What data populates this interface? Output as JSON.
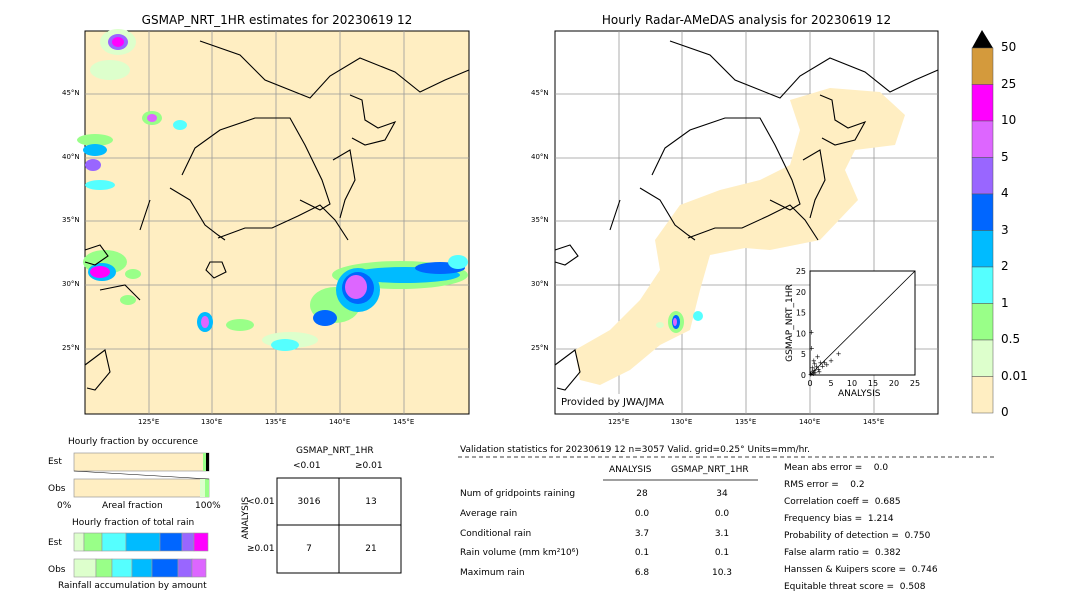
{
  "left_map": {
    "title": "GSMAP_NRT_1HR estimates for 20230619 12",
    "lat_labels": [
      "45°N",
      "40°N",
      "35°N",
      "30°N",
      "25°N"
    ],
    "lon_labels": [
      "125°E",
      "130°E",
      "135°E",
      "140°E",
      "145°E"
    ]
  },
  "right_map": {
    "title": "Hourly Radar-AMeDAS analysis for 20230619 12",
    "lat_labels": [
      "45°N",
      "40°N",
      "35°N",
      "30°N",
      "25°N"
    ],
    "lon_labels": [
      "125°E",
      "130°E",
      "135°E",
      "140°E",
      "145°E"
    ],
    "credit": "Provided by JWA/JMA"
  },
  "colorbar": {
    "labels": [
      "50",
      "25",
      "10",
      "5",
      "4",
      "3",
      "2",
      "1",
      "0.5",
      "0.01",
      "0"
    ],
    "colors": [
      "#d49a3c",
      "#ff00ff",
      "#dd66ff",
      "#9966ff",
      "#0066ff",
      "#00bbff",
      "#55ffff",
      "#99ff88",
      "#ddffcc",
      "#ffeec2"
    ],
    "arrow_color": "#000000"
  },
  "fraction_occurrence": {
    "title": "Hourly fraction by occurence",
    "rows": [
      "Est",
      "Obs"
    ],
    "xlabel": "Areal fraction",
    "x_left": "0%",
    "x_right": "100%"
  },
  "fraction_total": {
    "title": "Hourly fraction of total rain",
    "rows": [
      "Est",
      "Obs"
    ],
    "xlabel": "Rainfall accumulation by amount"
  },
  "contingency": {
    "title": "GSMAP_NRT_1HR",
    "col_headers": [
      "<0.01",
      "≥0.01"
    ],
    "row_axis": "ANALYSIS",
    "row_headers": [
      "<0.01",
      "≥0.01"
    ],
    "cells": [
      [
        "3016",
        "13"
      ],
      [
        "7",
        "21"
      ]
    ]
  },
  "validation": {
    "header": "Validation statistics for 20230619 12  n=3057 Valid. grid=0.25° Units=mm/hr.",
    "col_headers": [
      "ANALYSIS",
      "GSMAP_NRT_1HR"
    ],
    "rows": [
      {
        "label": "Num of gridpoints raining",
        "a": "28",
        "g": "34"
      },
      {
        "label": "Average rain",
        "a": "0.0",
        "g": "0.0"
      },
      {
        "label": "Conditional rain",
        "a": "3.7",
        "g": "3.1"
      },
      {
        "label": "Rain volume (mm km²10⁶)",
        "a": "0.1",
        "g": "0.1"
      },
      {
        "label": "Maximum rain",
        "a": "6.8",
        "g": "10.3"
      }
    ],
    "scores": [
      "Mean abs error =    0.0",
      "RMS error =    0.2",
      "Correlation coeff =  0.685",
      "Frequency bias =  1.214",
      "Probability of detection =  0.750",
      "False alarm ratio =  0.382",
      "Hanssen & Kuipers score =  0.746",
      "Equitable threat score =  0.508"
    ]
  },
  "chart_data": [
    {
      "type": "scatter",
      "xlabel": "ANALYSIS",
      "ylabel": "GSMAP_NRT_1HR",
      "xlim": [
        0,
        25
      ],
      "ylim": [
        0,
        25
      ],
      "ticks": [
        "0",
        "5",
        "10",
        "15",
        "20",
        "25"
      ],
      "points": [
        [
          0.2,
          0.3
        ],
        [
          0.5,
          0.8
        ],
        [
          0.8,
          0.4
        ],
        [
          1,
          1.2
        ],
        [
          1.2,
          0.6
        ],
        [
          1.5,
          2
        ],
        [
          2,
          1.5
        ],
        [
          2.5,
          3
        ],
        [
          3,
          2.2
        ],
        [
          0.3,
          10.3
        ],
        [
          0.4,
          6.5
        ],
        [
          1.8,
          4.5
        ],
        [
          3.5,
          3
        ],
        [
          4,
          2.5
        ],
        [
          5,
          3.5
        ],
        [
          6.8,
          5.2
        ],
        [
          0.6,
          1.8
        ],
        [
          1.1,
          2.8
        ],
        [
          2.2,
          0.9
        ],
        [
          0.9,
          3.5
        ]
      ]
    }
  ]
}
